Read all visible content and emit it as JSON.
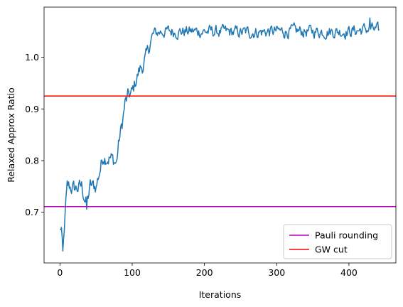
{
  "chart_data": {
    "type": "line",
    "title": "",
    "xlabel": "Iterations",
    "ylabel": "Relaxed Approx Ratio",
    "xlim": [
      -22,
      465
    ],
    "ylim": [
      0.602,
      1.097
    ],
    "xticks": [
      0,
      100,
      200,
      300,
      400
    ],
    "yticks": [
      0.7,
      0.8,
      0.9,
      1.0
    ],
    "xtick_labels": [
      "0",
      "100",
      "200",
      "300",
      "400"
    ],
    "ytick_labels": [
      "0.7",
      "0.8",
      "0.9",
      "1.0"
    ],
    "grid": false,
    "legend_position": "lower-right",
    "series": [
      {
        "name": "",
        "color": "#1f77b4",
        "style": "noisy",
        "anchors": [
          [
            0,
            0.665
          ],
          [
            2,
            0.67
          ],
          [
            4,
            0.625
          ],
          [
            6,
            0.665
          ],
          [
            8,
            0.72
          ],
          [
            10,
            0.752
          ],
          [
            20,
            0.745
          ],
          [
            30,
            0.75
          ],
          [
            37,
            0.715
          ],
          [
            42,
            0.75
          ],
          [
            50,
            0.75
          ],
          [
            55,
            0.78
          ],
          [
            60,
            0.81
          ],
          [
            70,
            0.805
          ],
          [
            78,
            0.795
          ],
          [
            82,
            0.84
          ],
          [
            86,
            0.87
          ],
          [
            90,
            0.91
          ],
          [
            95,
            0.925
          ],
          [
            100,
            0.93
          ],
          [
            105,
            0.955
          ],
          [
            110,
            0.975
          ],
          [
            115,
            0.985
          ],
          [
            120,
            1.0
          ],
          [
            125,
            1.03
          ],
          [
            130,
            1.045
          ],
          [
            140,
            1.05
          ],
          [
            200,
            1.05
          ],
          [
            250,
            1.048
          ],
          [
            300,
            1.05
          ],
          [
            350,
            1.05
          ],
          [
            400,
            1.05
          ],
          [
            430,
            1.055
          ],
          [
            442,
            1.05
          ]
        ]
      },
      {
        "name": "Pauli rounding",
        "color": "#bf00bf",
        "style": "hline",
        "y": 0.711
      },
      {
        "name": "GW cut",
        "color": "#ff0000",
        "style": "hline",
        "y": 0.925
      }
    ]
  }
}
